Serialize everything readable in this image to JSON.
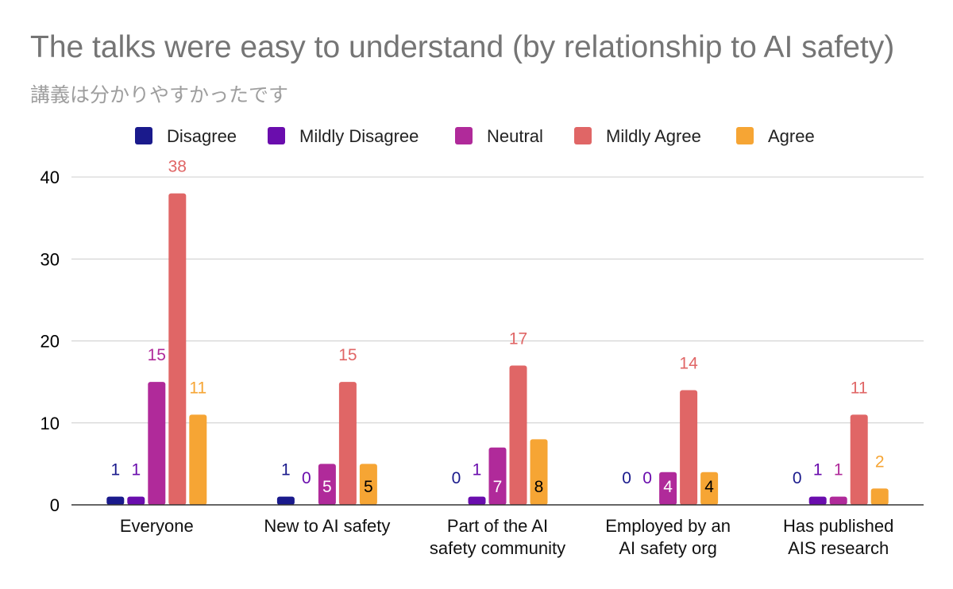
{
  "chart_data": {
    "type": "bar",
    "title": "The talks were easy to understand (by relationship to AI safety)",
    "subtitle": "講義は分かりやすかったです",
    "categories": [
      [
        "Everyone"
      ],
      [
        "New to AI safety"
      ],
      [
        "Part of the AI",
        "safety community"
      ],
      [
        "Employed by an",
        "AI safety org"
      ],
      [
        "Has published",
        "AIS research"
      ]
    ],
    "series": [
      {
        "name": "Disagree",
        "color": "#1a1a8c",
        "values": [
          1,
          1,
          0,
          0,
          0
        ]
      },
      {
        "name": "Mildly Disagree",
        "color": "#6a0dad",
        "values": [
          1,
          0,
          1,
          0,
          1
        ]
      },
      {
        "name": "Neutral",
        "color": "#b02a9a",
        "values": [
          15,
          5,
          7,
          4,
          1
        ]
      },
      {
        "name": "Mildly Agree",
        "color": "#e06666",
        "values": [
          38,
          15,
          17,
          14,
          11
        ]
      },
      {
        "name": "Agree",
        "color": "#f6a534",
        "values": [
          11,
          5,
          8,
          4,
          2
        ]
      }
    ],
    "ylim": [
      0,
      40
    ],
    "yticks": [
      0,
      10,
      20,
      30,
      40
    ],
    "xlabel": "",
    "ylabel": "",
    "legend_position": "top",
    "grid": true
  }
}
